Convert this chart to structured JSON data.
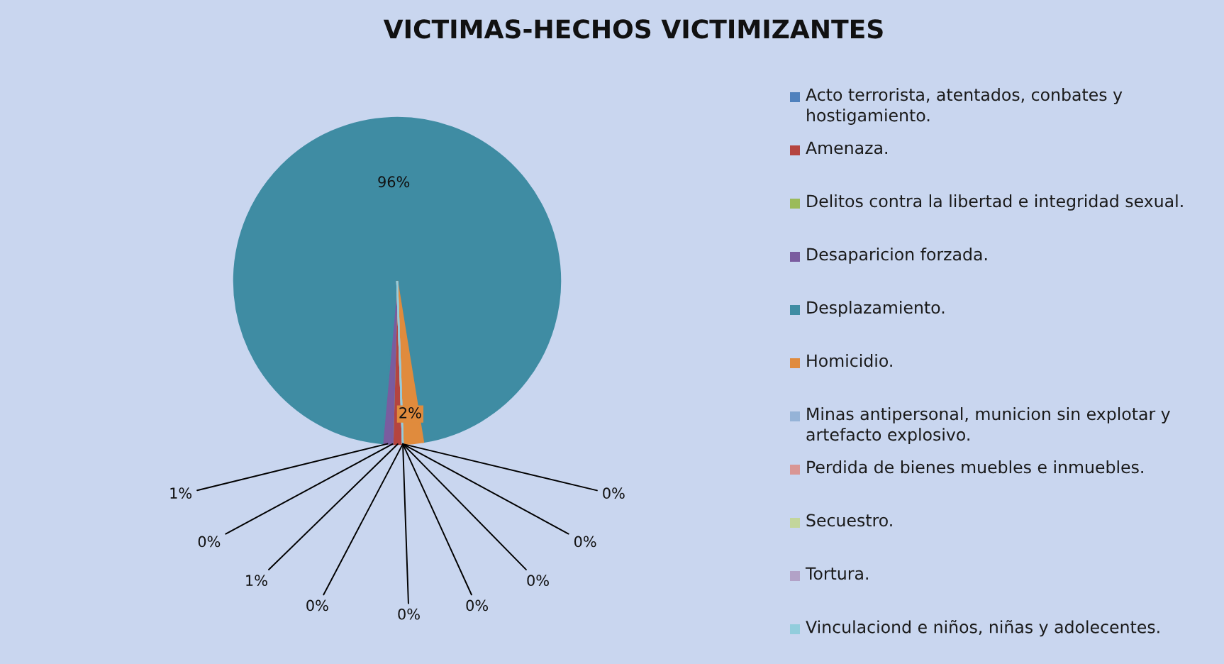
{
  "chart_data": {
    "type": "pie",
    "title": "VICTIMAS-HECHOS VICTIMIZANTES",
    "categories": [
      "Acto terrorista, atentados, conbates y hostigamiento.",
      "Amenaza.",
      "Delitos contra la libertad e integridad sexual.",
      "Desaparicion forzada.",
      "Desplazamiento.",
      "Homicidio.",
      "Minas antipersonal, municion sin explotar y artefacto explosivo.",
      "Perdida de bienes muebles e inmuebles.",
      "Secuestro.",
      "Tortura.",
      "Vinculaciond e niños, niñas y adolecentes."
    ],
    "values": [
      0,
      1,
      0,
      1,
      96,
      2,
      0,
      0,
      0,
      0,
      0
    ],
    "colors": [
      "#4f81bd",
      "#b5443f",
      "#9bbb59",
      "#7a5c9f",
      "#3f8ca3",
      "#e08b3d",
      "#95b3d7",
      "#d99694",
      "#c3d69b",
      "#b2a2c7",
      "#92cddc"
    ],
    "value_labels": [
      "0%",
      "1%",
      "0%",
      "1%",
      "96%",
      "2%",
      "0%",
      "0%",
      "0%",
      "0%",
      "0%"
    ],
    "legend": "right"
  }
}
